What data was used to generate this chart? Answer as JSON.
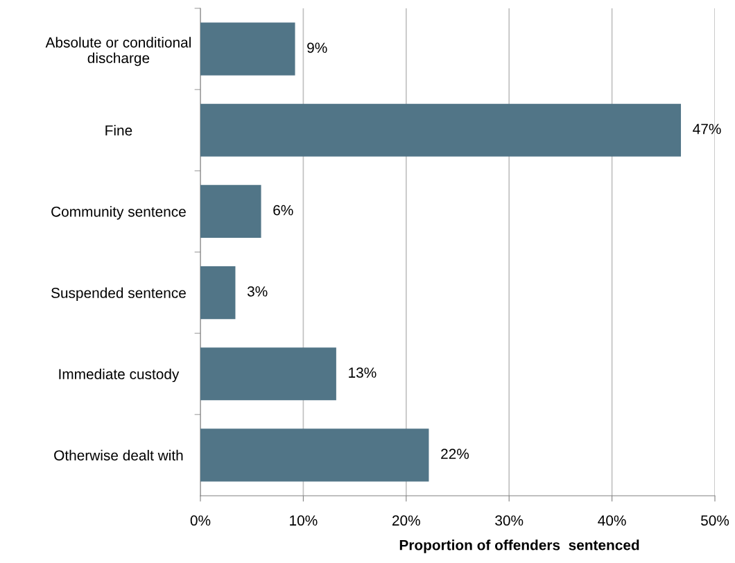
{
  "chart_data": {
    "type": "bar",
    "orientation": "horizontal",
    "xlabel": "Proportion of offenders  sentenced",
    "categories": [
      "Absolute or conditional\ndischarge",
      "Fine",
      "Community sentence",
      "Suspended sentence",
      "Immediate custody",
      "Otherwise dealt with"
    ],
    "values": [
      9.2,
      46.7,
      5.9,
      3.4,
      13.2,
      22.2
    ],
    "value_labels": [
      "9%",
      "47%",
      "6%",
      "3%",
      "13%",
      "22%"
    ],
    "color": "#517587",
    "xlim": [
      0,
      50
    ],
    "xticks": [
      {
        "value": 0,
        "label": "0%"
      },
      {
        "value": 10,
        "label": "10%"
      },
      {
        "value": 20,
        "label": "20%"
      },
      {
        "value": 30,
        "label": "30%"
      },
      {
        "value": 40,
        "label": "40%"
      },
      {
        "value": 50,
        "label": "50%"
      }
    ],
    "grid": "x"
  }
}
